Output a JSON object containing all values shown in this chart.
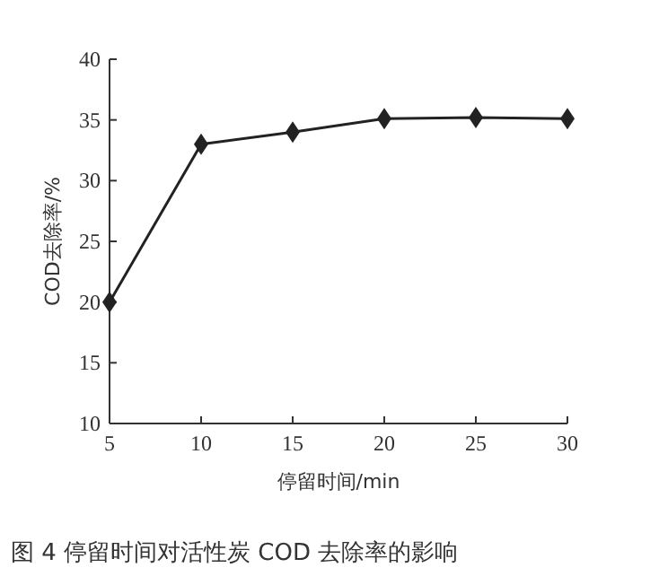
{
  "chart_data": {
    "type": "line",
    "xlabel": "停留时间/min",
    "ylabel": "COD去除率/%",
    "x": [
      5,
      10,
      15,
      20,
      25,
      30
    ],
    "series": [
      {
        "color": "#222222",
        "values": [
          20,
          33,
          34,
          35.1,
          35.2,
          35.1
        ]
      }
    ],
    "xlim": [
      5,
      30
    ],
    "xticks": [
      5,
      10,
      15,
      20,
      25,
      30
    ],
    "ylim": [
      10,
      40
    ],
    "yticks": [
      10,
      15,
      20,
      25,
      30,
      35,
      40
    ],
    "marker": "diamond",
    "line_style": "solid",
    "grid": false,
    "annotations": [
      "图 4 停留时间对活性炭 COD 去除率的影响"
    ]
  }
}
